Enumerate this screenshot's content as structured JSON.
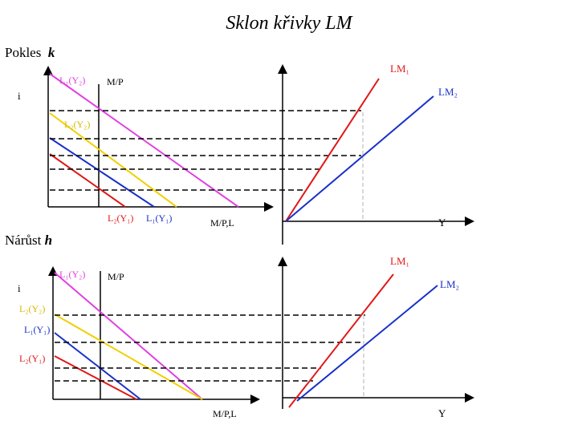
{
  "title": "Sklon křivky LM",
  "sections": [
    {
      "prefix": "Pokles",
      "var": "k"
    },
    {
      "prefix": "Nárůst",
      "var": "h"
    }
  ],
  "panel_top": {
    "money_market": {
      "y_axis_label": "i",
      "x_axis_label": "M/P,L",
      "supply_label": "M/P",
      "curves": [
        {
          "label": "L₁(Y₂)",
          "color": "#e040e0"
        },
        {
          "label": "L₂(Y₂)",
          "color": "#f0d000"
        },
        {
          "label": "L₁(Y₁)",
          "color": "#1a30c8"
        },
        {
          "label": "L₂(Y₁)",
          "color": "#e01818"
        }
      ]
    },
    "lm": {
      "x_axis_label": "Y",
      "curves": [
        {
          "label": "LM₁",
          "color": "#e01818"
        },
        {
          "label": "LM₂",
          "color": "#1a30c8"
        }
      ]
    }
  },
  "panel_bottom": {
    "money_market": {
      "y_axis_label": "i",
      "x_axis_label": "M/P,L",
      "supply_label": "M/P",
      "curves": [
        {
          "label": "L₁(Y₂)",
          "color": "#e040e0"
        },
        {
          "label": "L₂(Y₂)",
          "color": "#f0d000"
        },
        {
          "label": "L₁(Y₁)",
          "color": "#1a30c8"
        },
        {
          "label": "L₂(Y₁)",
          "color": "#e01818"
        }
      ]
    },
    "lm": {
      "x_axis_label": "Y",
      "curves": [
        {
          "label": "LM₁",
          "color": "#e01818"
        },
        {
          "label": "LM₂",
          "color": "#1a30c8"
        }
      ]
    }
  }
}
